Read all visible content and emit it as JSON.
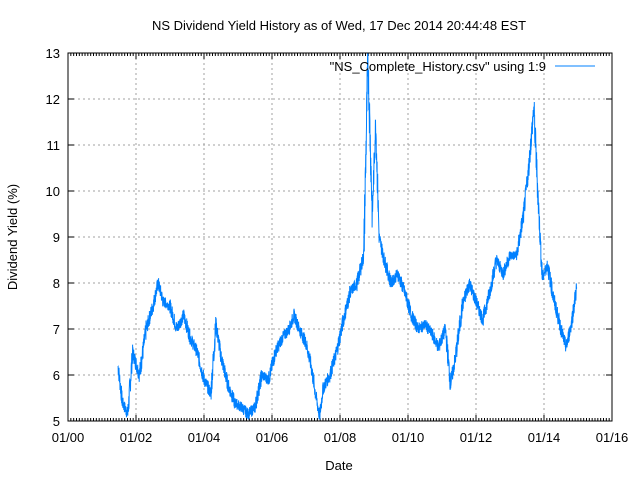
{
  "chart_data": {
    "type": "line",
    "title": "NS Dividend Yield History as of Wed, 17 Dec 2014 20:44:48 EST",
    "xlabel": "Date",
    "ylabel": "Dividend Yield (%)",
    "xlim": [
      2000,
      2016
    ],
    "ylim": [
      5,
      13
    ],
    "grid": true,
    "legend_position": "top-right",
    "x_ticks": [
      {
        "value": 2000,
        "label": "01/00"
      },
      {
        "value": 2002,
        "label": "01/02"
      },
      {
        "value": 2004,
        "label": "01/04"
      },
      {
        "value": 2006,
        "label": "01/06"
      },
      {
        "value": 2008,
        "label": "01/08"
      },
      {
        "value": 2010,
        "label": "01/10"
      },
      {
        "value": 2012,
        "label": "01/12"
      },
      {
        "value": 2014,
        "label": "01/14"
      },
      {
        "value": 2016,
        "label": "01/16"
      }
    ],
    "y_ticks": [
      5,
      6,
      7,
      8,
      9,
      10,
      11,
      12,
      13
    ],
    "series": [
      {
        "name": "\"NS_Complete_History.csv\" using 1:9",
        "color": "#0080ff",
        "points": [
          [
            2001.47,
            6.2
          ],
          [
            2001.6,
            5.4
          ],
          [
            2001.76,
            5.15
          ],
          [
            2001.9,
            6.5
          ],
          [
            2002.1,
            6.0
          ],
          [
            2002.3,
            7.0
          ],
          [
            2002.5,
            7.5
          ],
          [
            2002.65,
            8.0
          ],
          [
            2002.8,
            7.6
          ],
          [
            2003.0,
            7.5
          ],
          [
            2003.2,
            7.0
          ],
          [
            2003.4,
            7.3
          ],
          [
            2003.6,
            6.8
          ],
          [
            2003.8,
            6.5
          ],
          [
            2004.0,
            5.9
          ],
          [
            2004.2,
            5.6
          ],
          [
            2004.35,
            7.1
          ],
          [
            2004.5,
            6.4
          ],
          [
            2004.7,
            5.8
          ],
          [
            2004.9,
            5.4
          ],
          [
            2005.1,
            5.3
          ],
          [
            2005.3,
            5.15
          ],
          [
            2005.5,
            5.3
          ],
          [
            2005.7,
            6.0
          ],
          [
            2005.9,
            5.9
          ],
          [
            2006.1,
            6.5
          ],
          [
            2006.3,
            6.8
          ],
          [
            2006.5,
            7.0
          ],
          [
            2006.65,
            7.3
          ],
          [
            2006.8,
            7.0
          ],
          [
            2007.0,
            6.7
          ],
          [
            2007.15,
            6.2
          ],
          [
            2007.3,
            5.5
          ],
          [
            2007.4,
            5.1
          ],
          [
            2007.5,
            5.7
          ],
          [
            2007.7,
            6.0
          ],
          [
            2007.9,
            6.5
          ],
          [
            2008.1,
            7.2
          ],
          [
            2008.3,
            7.8
          ],
          [
            2008.5,
            8.0
          ],
          [
            2008.7,
            8.6
          ],
          [
            2008.82,
            12.9
          ],
          [
            2008.95,
            9.5
          ],
          [
            2009.05,
            11.5
          ],
          [
            2009.15,
            9.0
          ],
          [
            2009.3,
            8.5
          ],
          [
            2009.5,
            8.0
          ],
          [
            2009.7,
            8.2
          ],
          [
            2009.9,
            7.8
          ],
          [
            2010.1,
            7.3
          ],
          [
            2010.3,
            7.0
          ],
          [
            2010.5,
            7.1
          ],
          [
            2010.7,
            6.9
          ],
          [
            2010.9,
            6.6
          ],
          [
            2011.1,
            7.0
          ],
          [
            2011.25,
            5.8
          ],
          [
            2011.4,
            6.4
          ],
          [
            2011.6,
            7.5
          ],
          [
            2011.8,
            8.0
          ],
          [
            2012.0,
            7.6
          ],
          [
            2012.2,
            7.2
          ],
          [
            2012.4,
            7.8
          ],
          [
            2012.6,
            8.5
          ],
          [
            2012.8,
            8.2
          ],
          [
            2013.0,
            8.6
          ],
          [
            2013.2,
            8.6
          ],
          [
            2013.4,
            9.5
          ],
          [
            2013.55,
            10.5
          ],
          [
            2013.7,
            11.8
          ],
          [
            2013.85,
            9.5
          ],
          [
            2013.95,
            8.1
          ],
          [
            2014.1,
            8.4
          ],
          [
            2014.3,
            7.6
          ],
          [
            2014.5,
            7.0
          ],
          [
            2014.65,
            6.6
          ],
          [
            2014.8,
            7.1
          ],
          [
            2014.96,
            7.9
          ]
        ]
      }
    ]
  }
}
